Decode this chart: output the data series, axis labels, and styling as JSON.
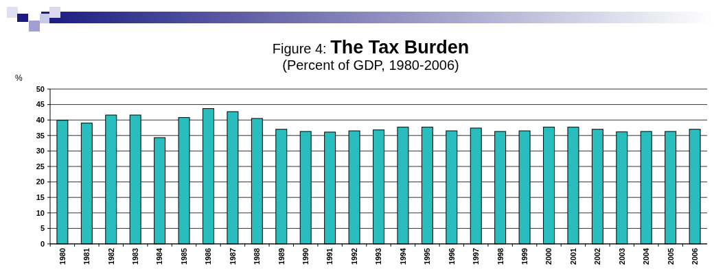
{
  "chart_data": {
    "type": "bar",
    "title": "Figure 4: The Tax Burden",
    "subtitle": "(Percent of GDP, 1980-2006)",
    "ylabel": "%",
    "categories": [
      "1980",
      "1981",
      "1982",
      "1983",
      "1984",
      "1985",
      "1986",
      "1987",
      "1988",
      "1989",
      "1990",
      "1991",
      "1992",
      "1993",
      "1994",
      "1995",
      "1996",
      "1997",
      "1998",
      "1999",
      "2000",
      "2001",
      "2002",
      "2003",
      "2004",
      "2005",
      "2006"
    ],
    "values": [
      39.9,
      39.0,
      41.6,
      41.6,
      34.3,
      40.8,
      43.7,
      42.7,
      40.5,
      37.0,
      36.3,
      36.1,
      36.5,
      36.8,
      37.7,
      37.7,
      36.5,
      37.4,
      36.3,
      36.5,
      37.7,
      37.7,
      37.0,
      36.2,
      36.3,
      36.3,
      37.0
    ],
    "color": "#2abdbd",
    "ylim": [
      0,
      50
    ],
    "yticks": [
      0,
      5,
      10,
      15,
      20,
      25,
      30,
      35,
      40,
      45,
      50
    ],
    "grid": "y"
  }
}
